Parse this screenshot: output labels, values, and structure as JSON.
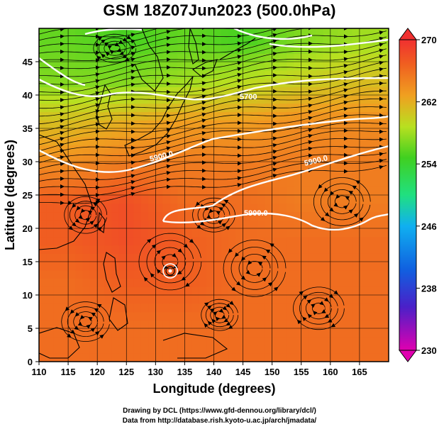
{
  "title": "GSM 18Z07Jun2023 (500.0hPa)",
  "x_axis": {
    "label": "Longitude (degrees)",
    "range": [
      110,
      170
    ],
    "ticks": [
      "110",
      "115",
      "120",
      "125",
      "130",
      "135",
      "140",
      "145",
      "150",
      "155",
      "160",
      "165"
    ]
  },
  "y_axis": {
    "label": "Latitude  (degrees)",
    "range": [
      0,
      50
    ],
    "ticks": [
      "0",
      "5",
      "10",
      "15",
      "20",
      "25",
      "30",
      "35",
      "40",
      "45"
    ]
  },
  "colorbar": {
    "min": 230,
    "max": 270,
    "ticks": [
      "270",
      "262",
      "254",
      "246",
      "238",
      "230"
    ]
  },
  "contours": {
    "labels": [
      "5900.0",
      "5900.0",
      "5900.0",
      "5700"
    ]
  },
  "credits": {
    "line1": "Drawing by DCL (https://www.gfd-dennou.org/library/dcl/)",
    "line2": "Data from http://database.rish.kyoto-u.ac.jp/arch/jmadata/"
  },
  "chart_data": {
    "type": "heatmap",
    "title": "GSM 18Z07Jun2023 (500.0hPa)",
    "xlabel": "Longitude (degrees)",
    "ylabel": "Latitude  (degrees)",
    "xlim": [
      110,
      170
    ],
    "ylim": [
      0,
      50
    ],
    "color_scale": {
      "min": 230,
      "max": 270,
      "ticks": [
        230,
        238,
        246,
        254,
        262,
        270
      ]
    },
    "field_rows": [
      {
        "lat": 48,
        "values": [
          256,
          255,
          256,
          255,
          257,
          258
        ]
      },
      {
        "lat": 42,
        "values": [
          257,
          257,
          258,
          259,
          260,
          261
        ]
      },
      {
        "lat": 36,
        "values": [
          261,
          262,
          263,
          263,
          264,
          264
        ]
      },
      {
        "lat": 30,
        "values": [
          264,
          265,
          265,
          265,
          265,
          265
        ]
      },
      {
        "lat": 24,
        "values": [
          267,
          268,
          266,
          266,
          265,
          265
        ]
      },
      {
        "lat": 18,
        "values": [
          267,
          268,
          267,
          266,
          266,
          266
        ]
      },
      {
        "lat": 12,
        "values": [
          266,
          267,
          267,
          266,
          266,
          266
        ]
      },
      {
        "lat": 6,
        "values": [
          266,
          266,
          266,
          266,
          266,
          266
        ]
      },
      {
        "lat": 0,
        "values": [
          266,
          266,
          266,
          266,
          266,
          266
        ]
      }
    ],
    "field_lons": [
      115,
      125,
      135,
      145,
      155,
      165
    ],
    "typhoon_center": {
      "lon": 132.5,
      "lat": 15
    },
    "grid": true
  }
}
